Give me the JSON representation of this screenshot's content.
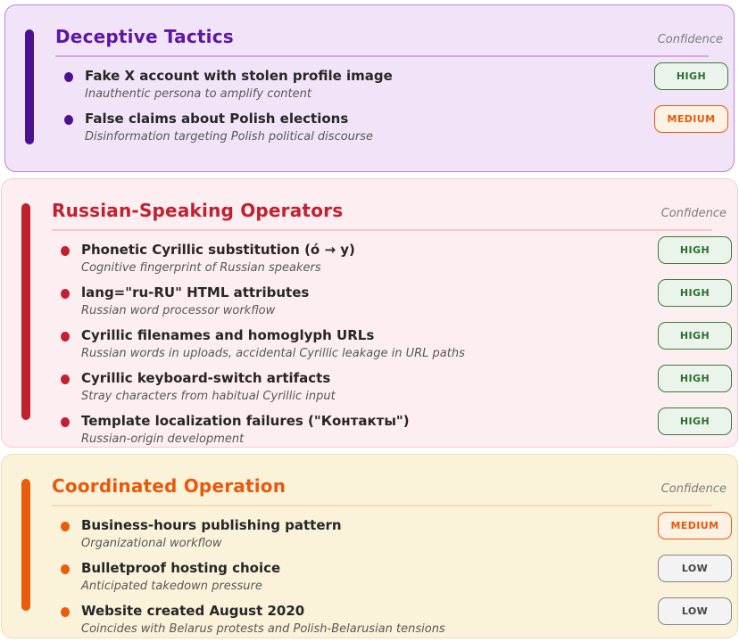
{
  "theme": {
    "purple": {
      "accent": "#4a1191",
      "title": "#5c17a5",
      "background": "#f2e4f8",
      "border": "#c17fd6",
      "rule": "#d7a6e3"
    },
    "red": {
      "accent": "#c2202f",
      "title": "#c2202f",
      "background": "#fdeef1",
      "border": "#f3ccd3",
      "rule": "#f3c9ce"
    },
    "orange": {
      "accent": "#e85c0a",
      "title": "#e8590c",
      "background": "#fbf2da",
      "border": "#eedfb8",
      "rule": "#f7ddb0"
    },
    "badge_high": {
      "background": "#eaf4ea",
      "border": "#3d7a40",
      "text": "#2c6e30"
    },
    "badge_medium": {
      "background": "#fef2e4",
      "border": "#e8590c",
      "text": "#e8590c"
    },
    "badge_low": {
      "background": "#f3f3f3",
      "border": "#858585",
      "text": "#454545"
    }
  },
  "sections": [
    {
      "title": "Deceptive Tactics",
      "confidence_label": "Confidence",
      "items": [
        {
          "title": "Fake X account with stolen profile image",
          "subtitle": "Inauthentic persona to amplify content",
          "confidence": "HIGH"
        },
        {
          "title": "False claims about Polish elections",
          "subtitle": "Disinformation targeting Polish political discourse",
          "confidence": "MEDIUM"
        }
      ]
    },
    {
      "title": "Russian-Speaking Operators",
      "confidence_label": "Confidence",
      "items": [
        {
          "title": "Phonetic Cyrillic substitution (ó → y)",
          "subtitle": "Cognitive fingerprint of Russian speakers",
          "confidence": "HIGH"
        },
        {
          "title": "lang=\"ru-RU\" HTML attributes",
          "subtitle": "Russian word processor workflow",
          "confidence": "HIGH"
        },
        {
          "title": "Cyrillic filenames and homoglyph URLs",
          "subtitle": "Russian words in uploads, accidental Cyrillic leakage in URL paths",
          "confidence": "HIGH"
        },
        {
          "title": "Cyrillic keyboard-switch artifacts",
          "subtitle": "Stray characters from habitual Cyrillic input",
          "confidence": "HIGH"
        },
        {
          "title": "Template localization failures (\"Контакты\")",
          "subtitle": "Russian-origin development",
          "confidence": "HIGH"
        }
      ]
    },
    {
      "title": "Coordinated Operation",
      "confidence_label": "Confidence",
      "items": [
        {
          "title": "Business-hours publishing pattern",
          "subtitle": "Organizational workflow",
          "confidence": "MEDIUM"
        },
        {
          "title": "Bulletproof hosting choice",
          "subtitle": "Anticipated takedown pressure",
          "confidence": "LOW"
        },
        {
          "title": "Website created August 2020",
          "subtitle": "Coincides with Belarus protests and Polish-Belarusian tensions",
          "confidence": "LOW"
        }
      ]
    }
  ]
}
